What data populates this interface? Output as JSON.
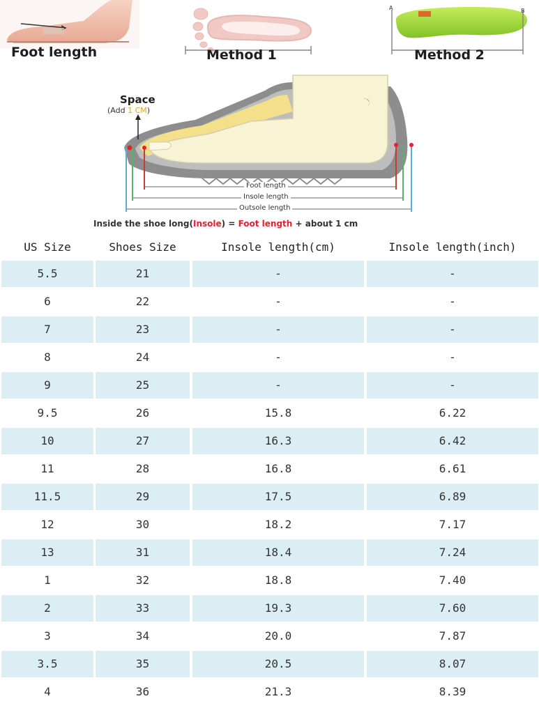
{
  "top_panels": {
    "foot_length_label": "Foot length",
    "method1_label": "Method 1",
    "method2_label": "Method 2",
    "insole_end_a": "A",
    "insole_end_b": "B"
  },
  "diagram": {
    "space_label": "Space",
    "add_prefix": "(Add ",
    "add_value": "1 CM",
    "add_suffix": ")",
    "foot_length_label": "Foot length",
    "insole_length_label": "Insole length",
    "outsole_length_label": "Outsole length",
    "formula": {
      "prefix": "Inside the shoe long(",
      "insole": "Insole",
      "middle": ") = ",
      "foot_length": "Foot length",
      "suffix": " + about 1 cm"
    },
    "colors": {
      "accent_orange": "#e8a020",
      "accent_red": "#e8202a",
      "outsole_gray": "#8d8d8d",
      "foot_cream": "#f7f3d4",
      "insole_yellow": "#f4df8a",
      "teal_line": "#5aaed0",
      "green_line": "#5ab070"
    }
  },
  "table": {
    "headers": [
      "US Size",
      "Shoes Size",
      "Insole length(cm)",
      "Insole length(inch)"
    ],
    "shade_color": "#dbeef3",
    "rows": [
      [
        "5.5",
        "21",
        "-",
        "-"
      ],
      [
        "6",
        "22",
        "-",
        "-"
      ],
      [
        "7",
        "23",
        "-",
        "-"
      ],
      [
        "8",
        "24",
        "-",
        "-"
      ],
      [
        "9",
        "25",
        "-",
        "-"
      ],
      [
        "9.5",
        "26",
        "15.8",
        "6.22"
      ],
      [
        "10",
        "27",
        "16.3",
        "6.42"
      ],
      [
        "11",
        "28",
        "16.8",
        "6.61"
      ],
      [
        "11.5",
        "29",
        "17.5",
        "6.89"
      ],
      [
        "12",
        "30",
        "18.2",
        "7.17"
      ],
      [
        "13",
        "31",
        "18.4",
        "7.24"
      ],
      [
        "1",
        "32",
        "18.8",
        "7.40"
      ],
      [
        "2",
        "33",
        "19.3",
        "7.60"
      ],
      [
        "3",
        "34",
        "20.0",
        "7.87"
      ],
      [
        "3.5",
        "35",
        "20.5",
        "8.07"
      ],
      [
        "4",
        "36",
        "21.3",
        "8.39"
      ]
    ]
  }
}
